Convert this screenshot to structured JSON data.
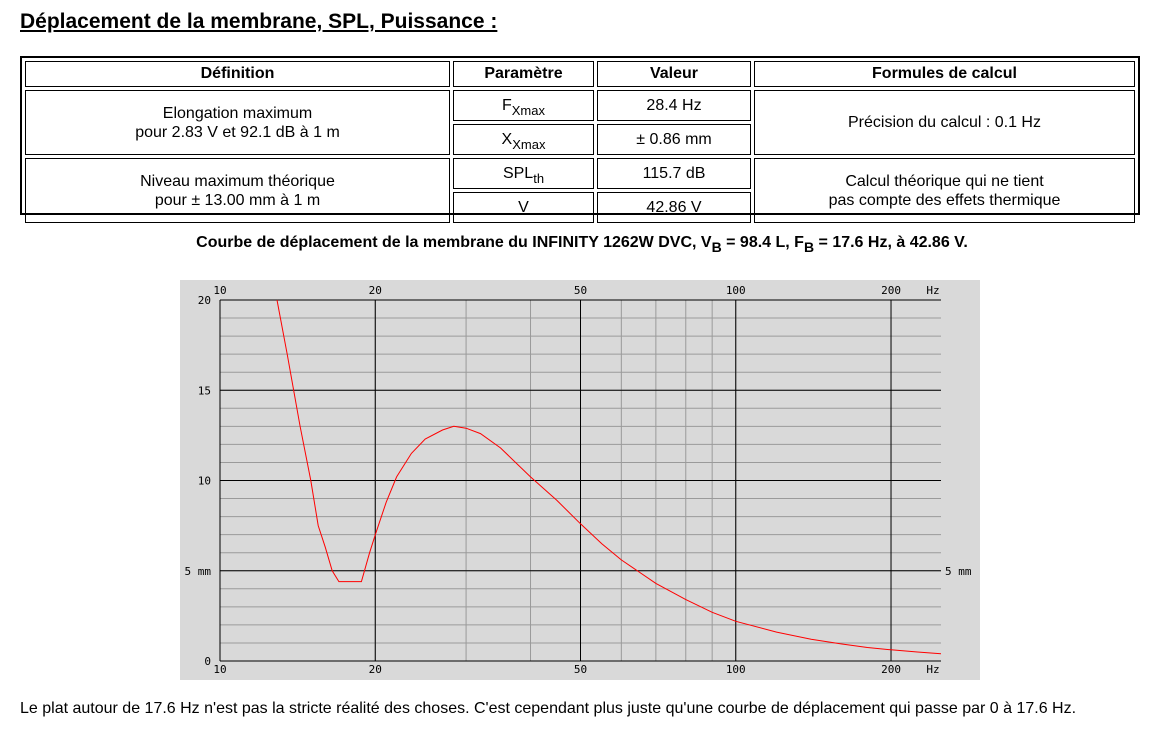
{
  "page": {
    "heading": "Déplacement de la membrane, SPL, Puissance :",
    "footnote": "Le plat autour de 17.6 Hz n'est pas la stricte réalité des choses. C'est cependant plus juste qu'une courbe de déplacement qui passe par 0 à 17.6 Hz."
  },
  "table": {
    "headers": {
      "definition": "Définition",
      "parametre": "Paramètre",
      "valeur": "Valeur",
      "formules": "Formules de calcul"
    },
    "elongation": {
      "def_line1": "Elongation maximum",
      "def_line2": "pour 2.83 V et 92.1 dB à 1 m",
      "p1_main": "F",
      "p1_sub": "Xmax",
      "v1": "28.4 Hz",
      "p2_main": "X",
      "p2_sub": "Xmax",
      "v2": "± 0.86 mm",
      "formula": "Précision du calcul : 0.1 Hz"
    },
    "niveau": {
      "def_line1": "Niveau maximum théorique",
      "def_line2": "pour ± 13.00 mm à 1 m",
      "p1_main": "SPL",
      "p1_sub": "th",
      "v1": "115.7 dB",
      "p2_main": "V",
      "v2": "42.86 V",
      "formula_line1": "Calcul théorique qui ne tient",
      "formula_line2": "pas compte des effets thermique"
    }
  },
  "chart_title": {
    "part1": "Courbe de déplacement de la membrane du INFINITY 1262W DVC, V",
    "sub1": "B",
    "part2": " = 98.4 L, F",
    "sub2": "B",
    "part3": " = 17.6 Hz, à 42.86 V."
  },
  "chart_data": {
    "type": "line",
    "x_scale": "log",
    "xlim": [
      10,
      250
    ],
    "ylim": [
      0,
      20
    ],
    "x_tick_labels": [
      {
        "x": 10,
        "label": "10"
      },
      {
        "x": 20,
        "label": "20"
      },
      {
        "x": 50,
        "label": "50"
      },
      {
        "x": 100,
        "label": "100"
      },
      {
        "x": 200,
        "label": "200"
      }
    ],
    "x_unit_label": "Hz",
    "y_tick_labels": [
      {
        "y": 0,
        "label": "0"
      },
      {
        "y": 5,
        "label": "5 mm"
      },
      {
        "y": 10,
        "label": "10"
      },
      {
        "y": 15,
        "label": "15"
      },
      {
        "y": 20,
        "label": "20"
      }
    ],
    "y_right_label": {
      "y": 5,
      "label": "5 mm"
    },
    "grid": true,
    "series": [
      {
        "color": "#ff0000",
        "points": [
          [
            12.9,
            20.0
          ],
          [
            13.5,
            17.0
          ],
          [
            14.3,
            13.0
          ],
          [
            15.0,
            10.0
          ],
          [
            15.5,
            7.5
          ],
          [
            16.0,
            6.3
          ],
          [
            16.5,
            5.0
          ],
          [
            17.0,
            4.4
          ],
          [
            18.8,
            4.4
          ],
          [
            19.5,
            6.0
          ],
          [
            20.0,
            7.0
          ],
          [
            21.0,
            8.8
          ],
          [
            22.0,
            10.2
          ],
          [
            23.5,
            11.5
          ],
          [
            25.0,
            12.3
          ],
          [
            27.0,
            12.8
          ],
          [
            28.4,
            13.0
          ],
          [
            30.0,
            12.9
          ],
          [
            32.0,
            12.6
          ],
          [
            35.0,
            11.8
          ],
          [
            40.0,
            10.2
          ],
          [
            45.0,
            8.9
          ],
          [
            50.0,
            7.6
          ],
          [
            55.0,
            6.5
          ],
          [
            60.0,
            5.6
          ],
          [
            70.0,
            4.3
          ],
          [
            80.0,
            3.4
          ],
          [
            90.0,
            2.7
          ],
          [
            100.0,
            2.2
          ],
          [
            120.0,
            1.6
          ],
          [
            140.0,
            1.2
          ],
          [
            160.0,
            0.95
          ],
          [
            180.0,
            0.75
          ],
          [
            200.0,
            0.62
          ],
          [
            225.0,
            0.5
          ],
          [
            250.0,
            0.4
          ]
        ]
      }
    ]
  }
}
